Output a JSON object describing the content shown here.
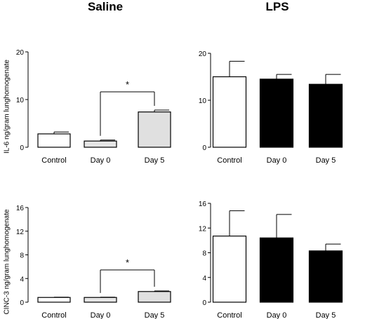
{
  "headers": {
    "saline": "Saline",
    "lps": "LPS"
  },
  "colors": {
    "saline_control": "#ffffff",
    "saline_day0": "#e6e6e6",
    "saline_day5": "#e0e0e0",
    "lps_control": "#ffffff",
    "lps_day0": "#000000",
    "lps_day5": "#000000"
  },
  "chart_data": [
    {
      "type": "bar",
      "title": "Saline",
      "ylabel": "IL-6 ng/gram lunghomogenate",
      "categories": [
        "Control",
        "Day 0",
        "Day 5"
      ],
      "values": [
        2.8,
        1.3,
        7.4
      ],
      "errors": [
        0.4,
        0.2,
        0.4
      ],
      "ylim": [
        0,
        20
      ],
      "yticks": [
        0,
        10,
        20
      ],
      "significance": {
        "from": "Day 0",
        "to": "Day 5",
        "label": "*"
      }
    },
    {
      "type": "bar",
      "title": "LPS",
      "ylabel": "",
      "categories": [
        "Control",
        "Day 0",
        "Day 5"
      ],
      "values": [
        15.0,
        14.5,
        13.4
      ],
      "errors": [
        3.3,
        1.0,
        2.1
      ],
      "ylim": [
        0,
        20
      ],
      "yticks": [
        0,
        10,
        20
      ]
    },
    {
      "type": "bar",
      "title": "",
      "ylabel": "CINC-3 ng/gram lunghomogenate",
      "categories": [
        "Control",
        "Day 0",
        "Day 5"
      ],
      "values": [
        0.8,
        0.8,
        1.8
      ],
      "errors": [
        0.05,
        0.05,
        0.1
      ],
      "ylim": [
        0,
        16
      ],
      "yticks": [
        0,
        4,
        8,
        12,
        16
      ],
      "significance": {
        "from": "Day 0",
        "to": "Day 5",
        "label": "*"
      }
    },
    {
      "type": "bar",
      "title": "",
      "ylabel": "",
      "categories": [
        "Control",
        "Day 0",
        "Day 5"
      ],
      "values": [
        10.7,
        10.4,
        8.3
      ],
      "errors": [
        4.1,
        3.8,
        1.1
      ],
      "ylim": [
        0,
        16
      ],
      "yticks": [
        0,
        4,
        8,
        12,
        16
      ]
    }
  ]
}
